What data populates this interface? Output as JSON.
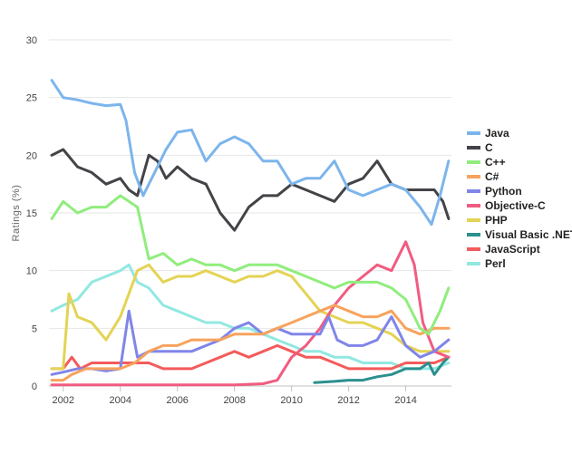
{
  "chart_data": {
    "type": "line",
    "title": "",
    "xlabel": "",
    "ylabel": "Ratings (%)",
    "xlim": [
      2001.5,
      2015.6
    ],
    "ylim": [
      0,
      30
    ],
    "x_ticks": [
      2002,
      2004,
      2006,
      2008,
      2010,
      2012,
      2014
    ],
    "y_ticks": [
      0,
      5,
      10,
      15,
      20,
      25,
      30
    ],
    "grid": "horizontal",
    "legend_position": "right",
    "series": [
      {
        "name": "Java",
        "color": "#7cb5ec",
        "points": [
          [
            2001.6,
            26.5
          ],
          [
            2002.0,
            25.0
          ],
          [
            2002.5,
            24.8
          ],
          [
            2003.0,
            24.5
          ],
          [
            2003.5,
            24.3
          ],
          [
            2004.0,
            24.4
          ],
          [
            2004.2,
            23.0
          ],
          [
            2004.5,
            18.5
          ],
          [
            2004.8,
            16.5
          ],
          [
            2005.0,
            17.5
          ],
          [
            2005.3,
            19.0
          ],
          [
            2005.6,
            20.5
          ],
          [
            2006.0,
            22.0
          ],
          [
            2006.5,
            22.2
          ],
          [
            2007.0,
            19.5
          ],
          [
            2007.5,
            21.0
          ],
          [
            2008.0,
            21.6
          ],
          [
            2008.5,
            21.0
          ],
          [
            2009.0,
            19.5
          ],
          [
            2009.5,
            19.5
          ],
          [
            2010.0,
            17.5
          ],
          [
            2010.5,
            18.0
          ],
          [
            2011.0,
            18.0
          ],
          [
            2011.5,
            19.5
          ],
          [
            2012.0,
            17.0
          ],
          [
            2012.5,
            16.5
          ],
          [
            2013.0,
            17.0
          ],
          [
            2013.5,
            17.5
          ],
          [
            2014.0,
            17.0
          ],
          [
            2014.5,
            15.5
          ],
          [
            2014.9,
            14.0
          ],
          [
            2015.2,
            16.5
          ],
          [
            2015.5,
            19.5
          ]
        ]
      },
      {
        "name": "C",
        "color": "#434348",
        "points": [
          [
            2001.6,
            20.0
          ],
          [
            2002.0,
            20.5
          ],
          [
            2002.5,
            19.0
          ],
          [
            2003.0,
            18.5
          ],
          [
            2003.5,
            17.5
          ],
          [
            2004.0,
            18.0
          ],
          [
            2004.3,
            17.0
          ],
          [
            2004.6,
            16.5
          ],
          [
            2005.0,
            20.0
          ],
          [
            2005.3,
            19.5
          ],
          [
            2005.6,
            18.0
          ],
          [
            2006.0,
            19.0
          ],
          [
            2006.5,
            18.0
          ],
          [
            2007.0,
            17.5
          ],
          [
            2007.5,
            15.0
          ],
          [
            2008.0,
            13.5
          ],
          [
            2008.5,
            15.5
          ],
          [
            2009.0,
            16.5
          ],
          [
            2009.5,
            16.5
          ],
          [
            2010.0,
            17.5
          ],
          [
            2010.5,
            17.0
          ],
          [
            2011.0,
            16.5
          ],
          [
            2011.5,
            16.0
          ],
          [
            2012.0,
            17.5
          ],
          [
            2012.5,
            18.0
          ],
          [
            2013.0,
            19.5
          ],
          [
            2013.5,
            17.5
          ],
          [
            2014.0,
            17.0
          ],
          [
            2014.5,
            17.0
          ],
          [
            2015.0,
            17.0
          ],
          [
            2015.3,
            16.0
          ],
          [
            2015.5,
            14.5
          ]
        ]
      },
      {
        "name": "C++",
        "color": "#90ed7d",
        "points": [
          [
            2001.6,
            14.5
          ],
          [
            2002.0,
            16.0
          ],
          [
            2002.5,
            15.0
          ],
          [
            2003.0,
            15.5
          ],
          [
            2003.5,
            15.5
          ],
          [
            2004.0,
            16.5
          ],
          [
            2004.3,
            16.0
          ],
          [
            2004.6,
            15.5
          ],
          [
            2005.0,
            11.0
          ],
          [
            2005.5,
            11.5
          ],
          [
            2006.0,
            10.5
          ],
          [
            2006.5,
            11.0
          ],
          [
            2007.0,
            10.5
          ],
          [
            2007.5,
            10.5
          ],
          [
            2008.0,
            10.0
          ],
          [
            2008.5,
            10.5
          ],
          [
            2009.0,
            10.5
          ],
          [
            2009.5,
            10.5
          ],
          [
            2010.0,
            10.0
          ],
          [
            2010.5,
            9.5
          ],
          [
            2011.0,
            9.0
          ],
          [
            2011.5,
            8.5
          ],
          [
            2012.0,
            9.0
          ],
          [
            2012.5,
            9.0
          ],
          [
            2013.0,
            9.0
          ],
          [
            2013.5,
            8.5
          ],
          [
            2014.0,
            7.5
          ],
          [
            2014.5,
            5.0
          ],
          [
            2014.8,
            4.5
          ],
          [
            2015.2,
            6.5
          ],
          [
            2015.5,
            8.5
          ]
        ]
      },
      {
        "name": "C#",
        "color": "#f7a35c",
        "points": [
          [
            2001.6,
            0.5
          ],
          [
            2002.0,
            0.5
          ],
          [
            2002.3,
            1.0
          ],
          [
            2002.8,
            1.5
          ],
          [
            2003.5,
            1.5
          ],
          [
            2004.0,
            1.5
          ],
          [
            2004.5,
            2.0
          ],
          [
            2005.0,
            3.0
          ],
          [
            2005.5,
            3.5
          ],
          [
            2006.0,
            3.5
          ],
          [
            2006.5,
            4.0
          ],
          [
            2007.0,
            4.0
          ],
          [
            2007.5,
            4.0
          ],
          [
            2008.0,
            4.5
          ],
          [
            2008.5,
            4.5
          ],
          [
            2009.0,
            4.5
          ],
          [
            2009.5,
            5.0
          ],
          [
            2010.0,
            5.5
          ],
          [
            2010.5,
            6.0
          ],
          [
            2011.0,
            6.5
          ],
          [
            2011.5,
            7.0
          ],
          [
            2012.0,
            6.5
          ],
          [
            2012.5,
            6.0
          ],
          [
            2013.0,
            6.0
          ],
          [
            2013.5,
            6.5
          ],
          [
            2014.0,
            5.0
          ],
          [
            2014.5,
            4.5
          ],
          [
            2015.0,
            5.0
          ],
          [
            2015.5,
            5.0
          ]
        ]
      },
      {
        "name": "Python",
        "color": "#8085e9",
        "points": [
          [
            2001.6,
            1.0
          ],
          [
            2002.0,
            1.2
          ],
          [
            2002.5,
            1.5
          ],
          [
            2003.0,
            1.5
          ],
          [
            2003.5,
            1.3
          ],
          [
            2004.0,
            1.5
          ],
          [
            2004.3,
            6.5
          ],
          [
            2004.6,
            2.5
          ],
          [
            2005.0,
            3.0
          ],
          [
            2005.5,
            3.0
          ],
          [
            2006.0,
            3.0
          ],
          [
            2006.5,
            3.0
          ],
          [
            2007.0,
            3.5
          ],
          [
            2007.5,
            4.0
          ],
          [
            2008.0,
            5.0
          ],
          [
            2008.5,
            5.5
          ],
          [
            2009.0,
            4.5
          ],
          [
            2009.5,
            5.0
          ],
          [
            2010.0,
            4.5
          ],
          [
            2010.5,
            4.5
          ],
          [
            2011.0,
            4.5
          ],
          [
            2011.3,
            6.0
          ],
          [
            2011.6,
            4.0
          ],
          [
            2012.0,
            3.5
          ],
          [
            2012.5,
            3.5
          ],
          [
            2013.0,
            4.0
          ],
          [
            2013.5,
            6.0
          ],
          [
            2014.0,
            3.5
          ],
          [
            2014.5,
            2.5
          ],
          [
            2015.0,
            3.0
          ],
          [
            2015.5,
            4.0
          ]
        ]
      },
      {
        "name": "Objective-C",
        "color": "#f15c80",
        "points": [
          [
            2001.6,
            0.1
          ],
          [
            2003.0,
            0.1
          ],
          [
            2004.0,
            0.1
          ],
          [
            2005.0,
            0.1
          ],
          [
            2006.0,
            0.1
          ],
          [
            2007.0,
            0.1
          ],
          [
            2008.0,
            0.1
          ],
          [
            2009.0,
            0.2
          ],
          [
            2009.5,
            0.5
          ],
          [
            2010.0,
            2.5
          ],
          [
            2010.5,
            3.5
          ],
          [
            2011.0,
            5.0
          ],
          [
            2011.5,
            7.0
          ],
          [
            2012.0,
            8.5
          ],
          [
            2012.5,
            9.5
          ],
          [
            2013.0,
            10.5
          ],
          [
            2013.5,
            10.0
          ],
          [
            2014.0,
            12.5
          ],
          [
            2014.3,
            10.5
          ],
          [
            2014.6,
            5.5
          ],
          [
            2015.0,
            3.0
          ],
          [
            2015.5,
            2.5
          ]
        ]
      },
      {
        "name": "PHP",
        "color": "#e4d354",
        "points": [
          [
            2001.6,
            1.5
          ],
          [
            2002.0,
            1.5
          ],
          [
            2002.2,
            8.0
          ],
          [
            2002.5,
            6.0
          ],
          [
            2003.0,
            5.5
          ],
          [
            2003.5,
            4.0
          ],
          [
            2004.0,
            6.0
          ],
          [
            2004.3,
            8.0
          ],
          [
            2004.6,
            10.0
          ],
          [
            2005.0,
            10.5
          ],
          [
            2005.5,
            9.0
          ],
          [
            2006.0,
            9.5
          ],
          [
            2006.5,
            9.5
          ],
          [
            2007.0,
            10.0
          ],
          [
            2007.5,
            9.5
          ],
          [
            2008.0,
            9.0
          ],
          [
            2008.5,
            9.5
          ],
          [
            2009.0,
            9.5
          ],
          [
            2009.5,
            10.0
          ],
          [
            2010.0,
            9.5
          ],
          [
            2010.5,
            8.0
          ],
          [
            2011.0,
            6.5
          ],
          [
            2011.5,
            6.0
          ],
          [
            2012.0,
            5.5
          ],
          [
            2012.5,
            5.5
          ],
          [
            2013.0,
            5.0
          ],
          [
            2013.5,
            4.5
          ],
          [
            2014.0,
            3.5
          ],
          [
            2014.5,
            3.0
          ],
          [
            2015.0,
            3.0
          ],
          [
            2015.5,
            3.0
          ]
        ]
      },
      {
        "name": "Visual Basic .NET",
        "color": "#2b908f",
        "points": [
          [
            2010.8,
            0.3
          ],
          [
            2011.5,
            0.4
          ],
          [
            2012.0,
            0.5
          ],
          [
            2012.5,
            0.5
          ],
          [
            2013.0,
            0.8
          ],
          [
            2013.5,
            1.0
          ],
          [
            2014.0,
            1.5
          ],
          [
            2014.5,
            1.5
          ],
          [
            2014.8,
            2.0
          ],
          [
            2015.0,
            1.0
          ],
          [
            2015.3,
            2.0
          ],
          [
            2015.5,
            2.5
          ]
        ]
      },
      {
        "name": "JavaScript",
        "color": "#f45b5b",
        "points": [
          [
            2001.6,
            1.5
          ],
          [
            2002.0,
            1.5
          ],
          [
            2002.3,
            2.5
          ],
          [
            2002.6,
            1.5
          ],
          [
            2003.0,
            2.0
          ],
          [
            2003.5,
            2.0
          ],
          [
            2004.0,
            2.0
          ],
          [
            2004.5,
            2.0
          ],
          [
            2005.0,
            2.0
          ],
          [
            2005.5,
            1.5
          ],
          [
            2006.0,
            1.5
          ],
          [
            2006.5,
            1.5
          ],
          [
            2007.0,
            2.0
          ],
          [
            2007.5,
            2.5
          ],
          [
            2008.0,
            3.0
          ],
          [
            2008.5,
            2.5
          ],
          [
            2009.0,
            3.0
          ],
          [
            2009.5,
            3.5
          ],
          [
            2010.0,
            3.0
          ],
          [
            2010.5,
            2.5
          ],
          [
            2011.0,
            2.5
          ],
          [
            2011.5,
            2.0
          ],
          [
            2012.0,
            1.5
          ],
          [
            2012.5,
            1.5
          ],
          [
            2013.0,
            1.5
          ],
          [
            2013.5,
            1.5
          ],
          [
            2014.0,
            2.0
          ],
          [
            2014.5,
            2.0
          ],
          [
            2015.0,
            2.0
          ],
          [
            2015.5,
            2.5
          ]
        ]
      },
      {
        "name": "Perl",
        "color": "#91e8e1",
        "points": [
          [
            2001.6,
            6.5
          ],
          [
            2002.0,
            7.0
          ],
          [
            2002.5,
            7.5
          ],
          [
            2003.0,
            9.0
          ],
          [
            2003.5,
            9.5
          ],
          [
            2004.0,
            10.0
          ],
          [
            2004.3,
            10.5
          ],
          [
            2004.6,
            9.0
          ],
          [
            2005.0,
            8.5
          ],
          [
            2005.5,
            7.0
          ],
          [
            2006.0,
            6.5
          ],
          [
            2006.5,
            6.0
          ],
          [
            2007.0,
            5.5
          ],
          [
            2007.5,
            5.5
          ],
          [
            2008.0,
            5.0
          ],
          [
            2008.5,
            5.0
          ],
          [
            2009.0,
            4.5
          ],
          [
            2009.5,
            4.0
          ],
          [
            2010.0,
            3.5
          ],
          [
            2010.5,
            3.0
          ],
          [
            2011.0,
            3.0
          ],
          [
            2011.5,
            2.5
          ],
          [
            2012.0,
            2.5
          ],
          [
            2012.5,
            2.0
          ],
          [
            2013.0,
            2.0
          ],
          [
            2013.5,
            2.0
          ],
          [
            2014.0,
            1.5
          ],
          [
            2014.5,
            1.5
          ],
          [
            2015.0,
            1.5
          ],
          [
            2015.5,
            2.0
          ]
        ]
      }
    ]
  }
}
